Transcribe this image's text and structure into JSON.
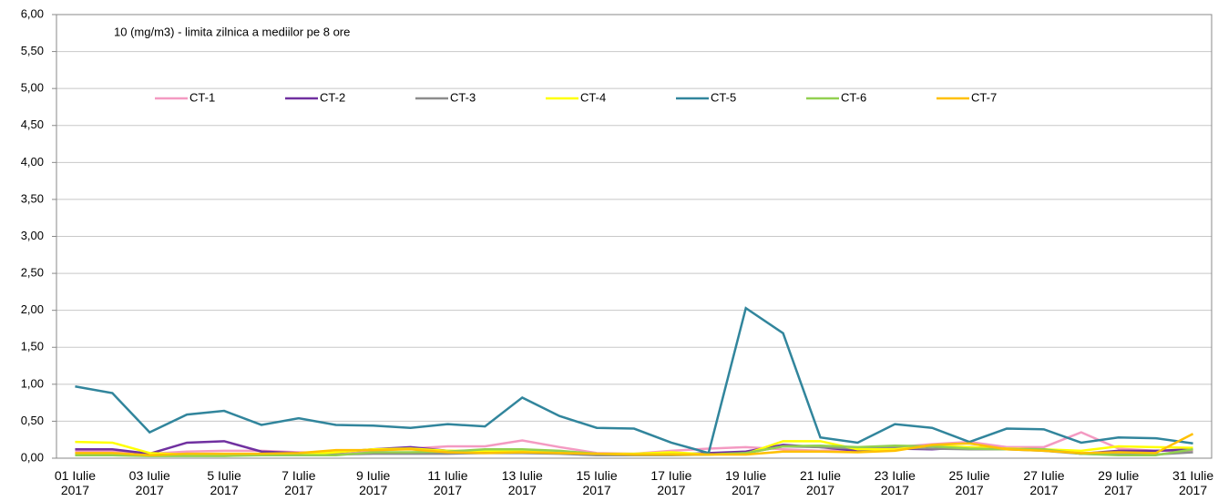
{
  "chart_data": {
    "type": "line",
    "annotation": "10 (mg/m3) - limita zilnica a mediilor pe 8 ore",
    "categories": [
      "01 Iulie 2017",
      null,
      "03 Iulie 2017",
      null,
      "5 Iulie 2017",
      null,
      "7 Iulie 2017",
      null,
      "9 Iulie 2017",
      null,
      "11 Iulie 2017",
      null,
      "13 Iulie 2017",
      null,
      "15 Iulie 2017",
      null,
      "17 Iulie 2017",
      null,
      "19 Iulie 2017",
      null,
      "21 Iulie 2017",
      null,
      "23 Iulie 2017",
      null,
      "25 Iulie 2017",
      null,
      "27 Iulie 2017",
      null,
      "29 Iulie 2017",
      null,
      "31 Iulie 2017"
    ],
    "series": [
      {
        "name": "CT-1",
        "color": "#f49ac2",
        "values": [
          0.09,
          0.09,
          0.06,
          0.09,
          0.1,
          0.1,
          0.08,
          0.07,
          0.1,
          0.13,
          0.16,
          0.16,
          0.24,
          0.15,
          0.07,
          0.06,
          0.1,
          0.13,
          0.15,
          0.12,
          0.1,
          0.12,
          0.15,
          0.19,
          0.22,
          0.15,
          0.15,
          0.35,
          0.13,
          0.1,
          0.1
        ]
      },
      {
        "name": "CT-2",
        "color": "#7030a0",
        "values": [
          0.12,
          0.12,
          0.06,
          0.21,
          0.23,
          0.09,
          0.07,
          0.08,
          0.12,
          0.15,
          0.1,
          0.08,
          0.1,
          0.08,
          0.05,
          0.05,
          0.05,
          0.07,
          0.09,
          0.18,
          0.15,
          0.1,
          0.13,
          0.12,
          0.15,
          0.13,
          0.12,
          0.06,
          0.1,
          0.1,
          0.12
        ]
      },
      {
        "name": "CT-3",
        "color": "#8c8c8c",
        "values": [
          0.06,
          0.06,
          0.04,
          0.05,
          0.05,
          0.05,
          0.05,
          0.05,
          0.06,
          0.06,
          0.06,
          0.07,
          0.07,
          0.06,
          0.04,
          0.04,
          0.04,
          0.05,
          0.07,
          0.16,
          0.15,
          0.13,
          0.14,
          0.13,
          0.12,
          0.12,
          0.1,
          0.06,
          0.05,
          0.05,
          0.08
        ]
      },
      {
        "name": "CT-4",
        "color": "#ffff00",
        "values": [
          0.22,
          0.21,
          0.07,
          0.05,
          0.05,
          0.05,
          0.05,
          0.08,
          0.12,
          0.13,
          0.1,
          0.1,
          0.1,
          0.08,
          0.06,
          0.06,
          0.08,
          0.05,
          0.06,
          0.23,
          0.23,
          0.12,
          0.12,
          0.17,
          0.15,
          0.13,
          0.12,
          0.1,
          0.16,
          0.15,
          0.14
        ]
      },
      {
        "name": "CT-5",
        "color": "#31859c",
        "values": [
          0.97,
          0.88,
          0.35,
          0.59,
          0.64,
          0.45,
          0.54,
          0.45,
          0.44,
          0.41,
          0.46,
          0.43,
          0.82,
          0.57,
          0.41,
          0.4,
          0.21,
          0.07,
          2.03,
          1.69,
          0.28,
          0.21,
          0.46,
          0.41,
          0.22,
          0.4,
          0.39,
          0.21,
          0.28,
          0.27,
          0.2
        ]
      },
      {
        "name": "CT-6",
        "color": "#92d050",
        "values": [
          0.04,
          0.04,
          0.03,
          0.03,
          0.03,
          0.04,
          0.04,
          0.04,
          0.08,
          0.08,
          0.09,
          0.12,
          0.12,
          0.1,
          0.06,
          0.05,
          0.05,
          0.05,
          0.07,
          0.16,
          0.17,
          0.15,
          0.17,
          0.16,
          0.13,
          0.12,
          0.12,
          0.06,
          0.04,
          0.04,
          0.12
        ]
      },
      {
        "name": "CT-7",
        "color": "#ffc000",
        "values": [
          0.07,
          0.07,
          0.04,
          0.06,
          0.06,
          0.06,
          0.07,
          0.11,
          0.11,
          0.12,
          0.08,
          0.07,
          0.08,
          0.07,
          0.06,
          0.05,
          0.05,
          0.05,
          0.05,
          0.09,
          0.09,
          0.08,
          0.1,
          0.18,
          0.2,
          0.12,
          0.1,
          0.07,
          0.08,
          0.07,
          0.33
        ]
      }
    ],
    "ylim": [
      0,
      6
    ],
    "yticks": [
      {
        "value": 0,
        "label": "0,00"
      },
      {
        "value": 0.5,
        "label": "0,50"
      },
      {
        "value": 1,
        "label": "1,00"
      },
      {
        "value": 1.5,
        "label": "1,50"
      },
      {
        "value": 2,
        "label": "2,00"
      },
      {
        "value": 2.5,
        "label": "2,50"
      },
      {
        "value": 3,
        "label": "3,00"
      },
      {
        "value": 3.5,
        "label": "3,50"
      },
      {
        "value": 4,
        "label": "4,00"
      },
      {
        "value": 4.5,
        "label": "4,50"
      },
      {
        "value": 5,
        "label": "5,00"
      },
      {
        "value": 5.5,
        "label": "5,50"
      },
      {
        "value": 6,
        "label": "6,00"
      }
    ],
    "grid": true,
    "legend": "top-left"
  }
}
